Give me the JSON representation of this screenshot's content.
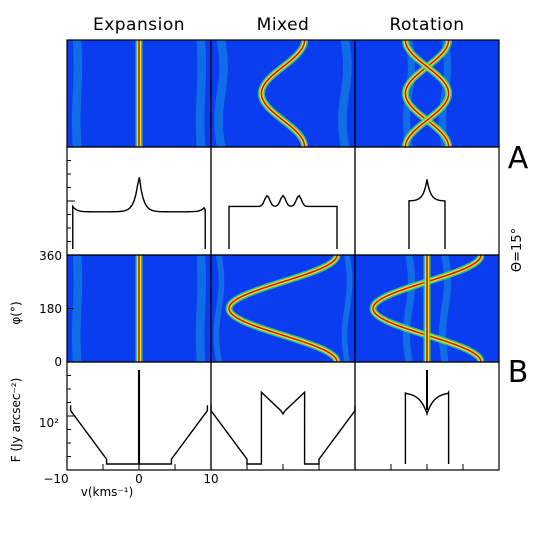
{
  "figure": {
    "column_titles": [
      "Expansion",
      "Mixed",
      "Rotation"
    ],
    "row_labels": [
      "A",
      "B"
    ],
    "angle_label": "Θ=15°",
    "phi_axis_label": "φ(°)",
    "phi_ticks": [
      "360",
      "180",
      "0"
    ],
    "flux_axis_label": "F (Jy arcsec⁻²)",
    "flux_tick": "10²",
    "velocity_ticks": [
      "−10",
      "0",
      "10"
    ],
    "velocity_axis_label": "v(kms⁻¹)"
  },
  "colors": {
    "map_background": "#0a3cf0",
    "map_mid": "#1ec8d2",
    "ridge_core": "#d01010",
    "ridge_edge": "#f0e010",
    "ridge_halo": "#30e080",
    "profile_line": "#000000"
  },
  "chart_data": {
    "type": "heatmap",
    "description_axes": {
      "x": "v (km s^-1)",
      "y_map": "phi (deg)",
      "y_profile": "F (Jy arcsec^-2)"
    },
    "xlim": [
      -10,
      10
    ],
    "phi_lim": [
      0,
      360
    ],
    "flux_scale": "log",
    "panels": [
      {
        "row": "A",
        "column": "Expansion",
        "kind": "map",
        "ridges": [
          {
            "center": 0,
            "amplitude": 0
          }
        ],
        "edges": {
          "inner": 8.0,
          "outer": 9.2
        }
      },
      {
        "row": "A",
        "column": "Mixed",
        "kind": "map",
        "ridges": [
          {
            "center": 0,
            "amplitude": 3
          }
        ],
        "edges": {
          "inner": 8.0,
          "outer": 9.2
        }
      },
      {
        "row": "A",
        "column": "Rotation",
        "kind": "map",
        "ridges": [
          {
            "center": 0,
            "amplitude": 3
          },
          {
            "center": 0,
            "amplitude": -3
          }
        ],
        "edges": {
          "inner": 2.0,
          "outer": 3.0
        }
      },
      {
        "row": "A",
        "column": "Expansion",
        "kind": "profile",
        "shape": "double-horned with central cusp",
        "half_width": 9.2
      },
      {
        "row": "A",
        "column": "Mixed",
        "kind": "profile",
        "shape": "flat-topped with two inner peaks",
        "half_width": 7.5
      },
      {
        "row": "A",
        "column": "Rotation",
        "kind": "profile",
        "shape": "narrow peaked",
        "half_width": 2.5
      },
      {
        "row": "B",
        "column": "Expansion",
        "kind": "map",
        "ridges": [
          {
            "center": 0,
            "amplitude": 0
          }
        ],
        "edges": {
          "inner": 8.0,
          "outer": 9.2
        }
      },
      {
        "row": "B",
        "column": "Mixed",
        "kind": "map",
        "ridges": [
          {
            "center": 0,
            "amplitude": 7.5
          }
        ],
        "edges": {
          "inner": 8.5,
          "outer": 9.3
        }
      },
      {
        "row": "B",
        "column": "Rotation",
        "kind": "map",
        "ridges": [
          {
            "center": 0,
            "amplitude": 7.5
          },
          {
            "center": 0,
            "amplitude": 0
          }
        ],
        "edges": {
          "inner": 2.0,
          "outer": 3.0
        }
      },
      {
        "row": "B",
        "column": "Expansion",
        "kind": "profile",
        "shape": "two separated wings with central spike",
        "half_width": 9.5
      },
      {
        "row": "B",
        "column": "Mixed",
        "kind": "profile",
        "shape": "outer wings plus central box",
        "half_width": 9.5
      },
      {
        "row": "B",
        "column": "Rotation",
        "kind": "profile",
        "shape": "box with central spike",
        "half_width": 3
      }
    ]
  }
}
